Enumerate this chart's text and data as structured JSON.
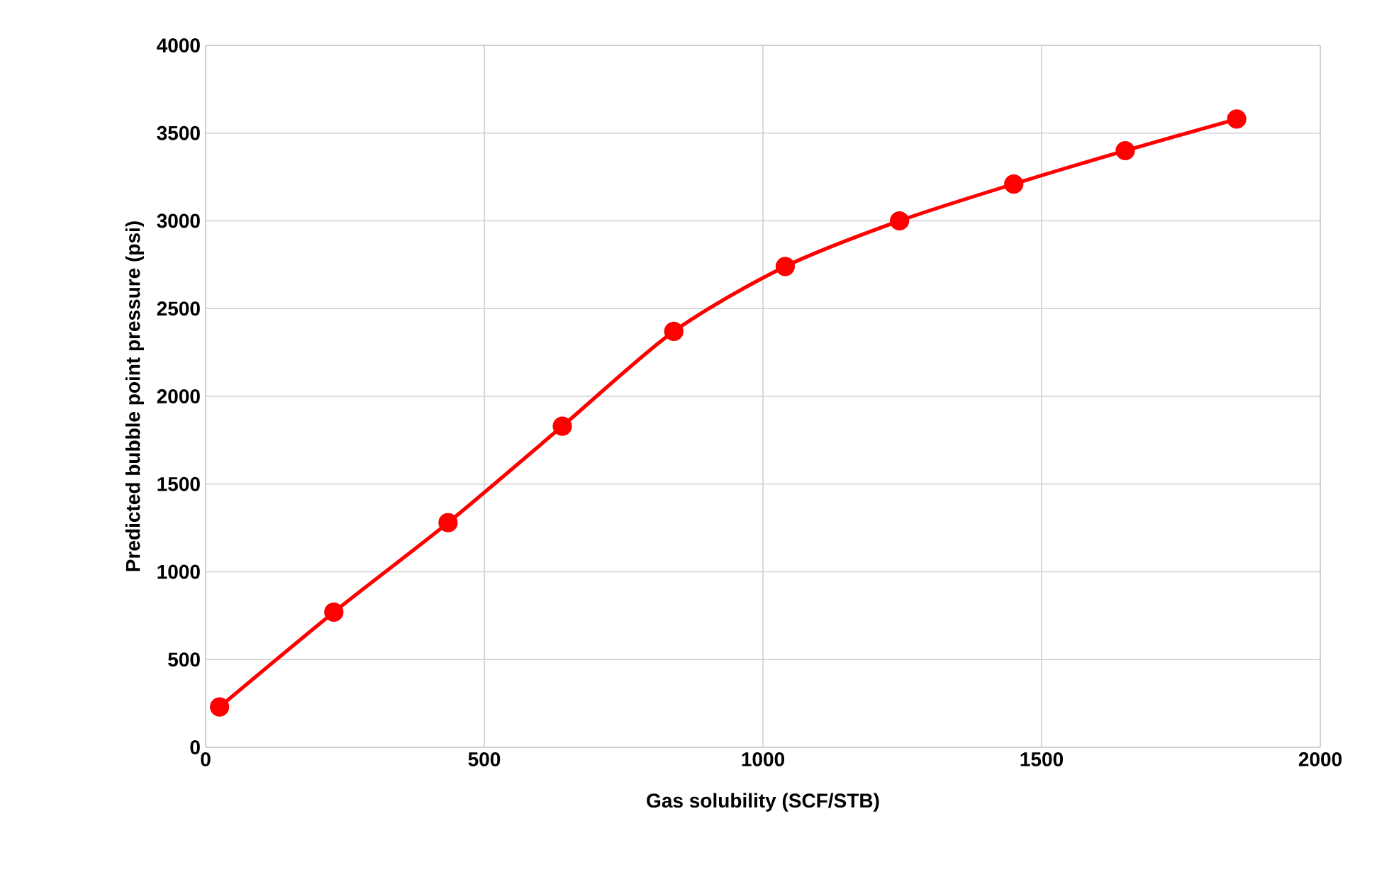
{
  "chart_data": {
    "type": "line",
    "xlabel": "Gas solubility (SCF/STB)",
    "ylabel": "Predicted bubble point pressure (psi)",
    "x": [
      25,
      230,
      435,
      640,
      840,
      1040,
      1245,
      1450,
      1650,
      1850
    ],
    "series": [
      {
        "color": "#ff0000",
        "values": [
          230,
          770,
          1280,
          1830,
          2370,
          2740,
          3000,
          3210,
          3400,
          3580
        ]
      }
    ],
    "xlim": [
      0,
      2000
    ],
    "ylim": [
      0,
      4000
    ],
    "xticks": [
      0,
      500,
      1000,
      1500,
      2000
    ],
    "yticks": [
      0,
      500,
      1000,
      1500,
      2000,
      2500,
      3000,
      3500,
      4000
    ],
    "grid": true,
    "marker": "circle",
    "line_style": "solid"
  }
}
